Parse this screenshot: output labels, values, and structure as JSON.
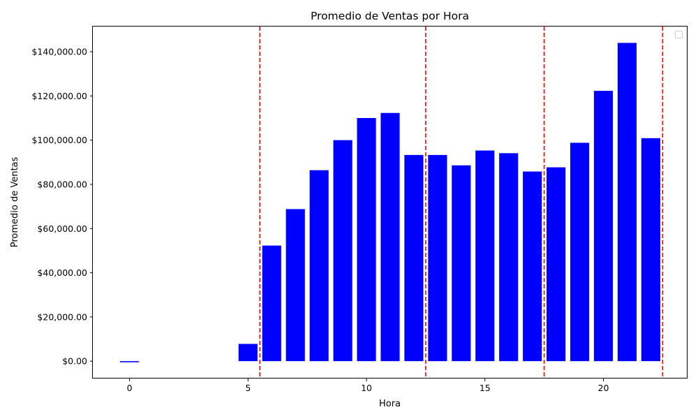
{
  "chart_data": {
    "type": "bar",
    "title": "Promedio de Ventas por Hora",
    "xlabel": "Hora",
    "ylabel": "Promedio de Ventas",
    "x": [
      0,
      5,
      6,
      7,
      8,
      9,
      10,
      11,
      12,
      13,
      14,
      15,
      16,
      17,
      18,
      19,
      20,
      21,
      22
    ],
    "values": [
      -500,
      7800,
      52300,
      68800,
      86400,
      100000,
      110000,
      112300,
      93300,
      93300,
      88600,
      95300,
      94100,
      85800,
      87700,
      98800,
      122300,
      144000,
      100900
    ],
    "xlim": [
      -1.55,
      23.55
    ],
    "ylim": [
      -7850,
      151400
    ],
    "xticks": [
      0,
      5,
      10,
      15,
      20
    ],
    "xtick_labels": [
      "0",
      "5",
      "10",
      "15",
      "20"
    ],
    "yticks": [
      0,
      20000,
      40000,
      60000,
      80000,
      100000,
      120000,
      140000
    ],
    "ytick_labels": [
      "$0.00",
      "$20,000.00",
      "$40,000.00",
      "$60,000.00",
      "$80,000.00",
      "$100,000.00",
      "$120,000.00",
      "$140,000.00"
    ],
    "vlines": [
      5.5,
      12.5,
      17.5,
      22.5
    ],
    "bar_color": "#0000ff",
    "vline_color": "#ff0000",
    "grid": false,
    "legend": "top-right (empty)"
  }
}
